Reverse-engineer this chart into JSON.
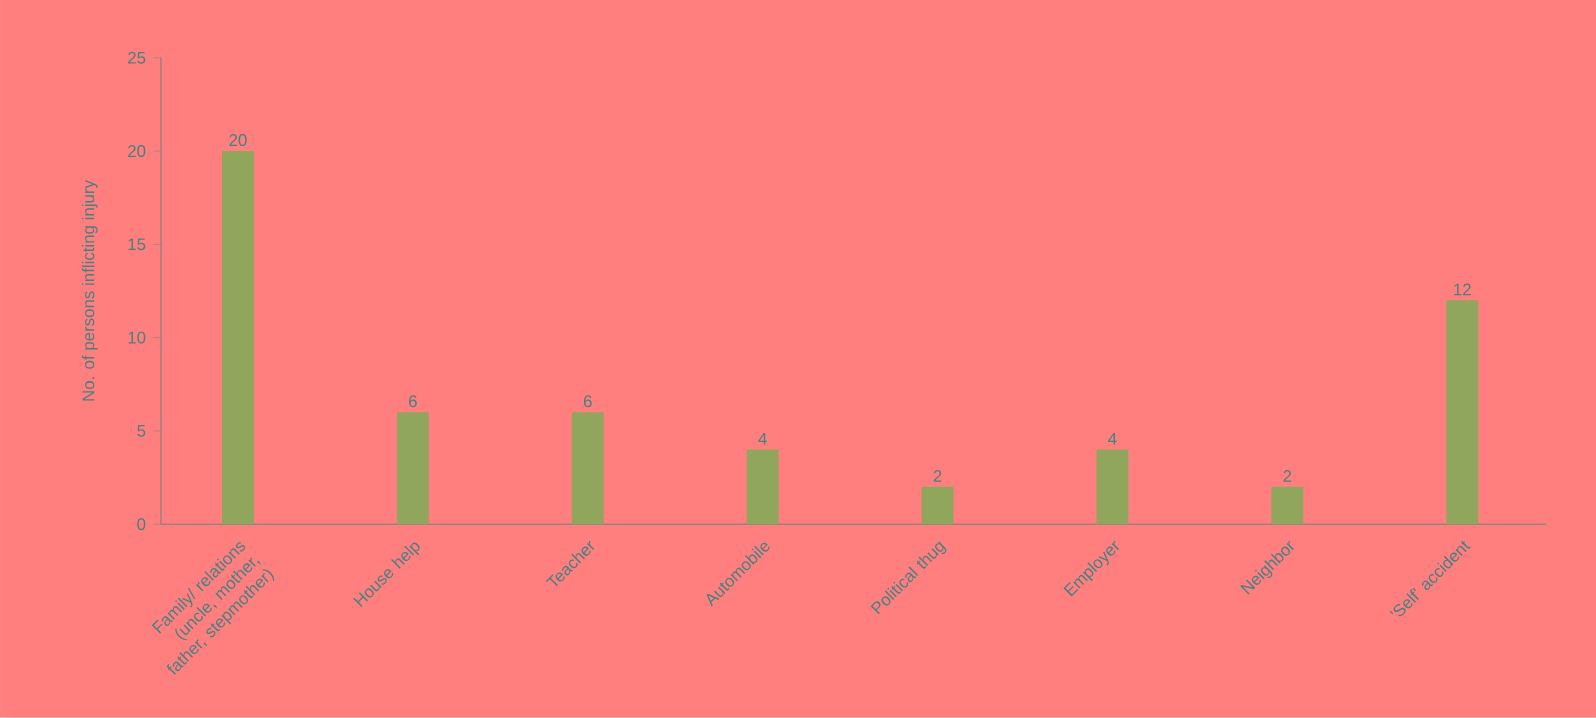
{
  "chart_data": {
    "type": "bar",
    "ylabel": "No. of persons inflicting injury",
    "categories": [
      "Family/ relations (uncle, mother, father, stepmother)",
      "House help",
      "Teacher",
      "Automobile",
      "Political thug",
      "Employer",
      "Neighbor",
      "'Self' accident"
    ],
    "values": [
      20,
      6,
      6,
      4,
      2,
      4,
      2,
      12
    ],
    "color": "#8fa65c",
    "ylim": [
      0,
      25
    ],
    "yticks": [
      0,
      5,
      10,
      15,
      20,
      25
    ],
    "data_labels": true,
    "grid": false
  }
}
